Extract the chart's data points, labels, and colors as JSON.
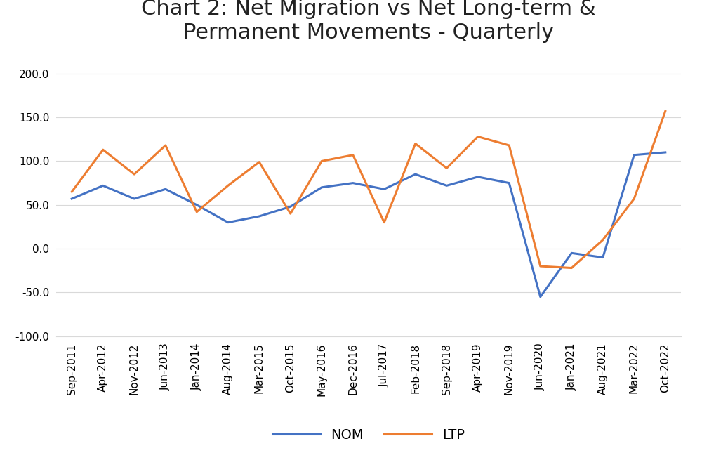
{
  "title": "Chart 2: Net Migration vs Net Long-term &\nPermanent Movements - Quarterly",
  "labels": [
    "Sep-2011",
    "Apr-2012",
    "Nov-2012",
    "Jun-2013",
    "Jan-2014",
    "Aug-2014",
    "Mar-2015",
    "Oct-2015",
    "May-2016",
    "Dec-2016",
    "Jul-2017",
    "Feb-2018",
    "Sep-2018",
    "Apr-2019",
    "Nov-2019",
    "Jun-2020",
    "Jan-2021",
    "Aug-2021",
    "Mar-2022",
    "Oct-2022"
  ],
  "NOM": [
    57,
    72,
    57,
    68,
    50,
    30,
    37,
    48,
    70,
    75,
    68,
    85,
    72,
    82,
    75,
    -55,
    -5,
    -10,
    107,
    110
  ],
  "LTP": [
    65,
    113,
    85,
    118,
    42,
    72,
    99,
    40,
    100,
    107,
    30,
    120,
    92,
    128,
    118,
    -20,
    -22,
    10,
    57,
    157
  ],
  "nom_color": "#4472c4",
  "ltp_color": "#ed7d31",
  "ylim": [
    -100,
    220
  ],
  "yticks": [
    -100.0,
    -50.0,
    0.0,
    50.0,
    100.0,
    150.0,
    200.0
  ],
  "background_color": "#ffffff",
  "grid_color": "#d9d9d9",
  "title_fontsize": 22,
  "legend_fontsize": 14,
  "tick_fontsize": 11
}
